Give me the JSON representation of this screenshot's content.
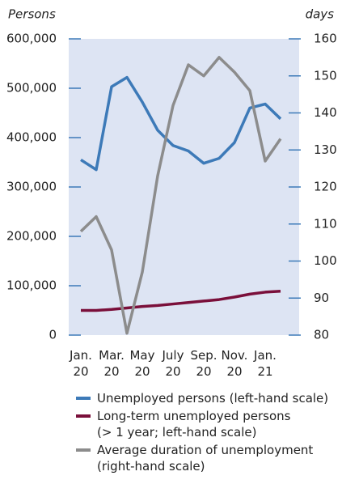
{
  "chart_data": {
    "type": "line",
    "ylabel": "Persons",
    "y2label": "days",
    "categories": [
      "Jan. 20",
      null,
      "Mar. 20",
      null,
      "May 20",
      null,
      "July 20",
      null,
      "Sep. 20",
      null,
      "Nov. 20",
      null,
      "Jan. 21",
      null
    ],
    "series": [
      {
        "name": "Unemployed persons (left-hand scale)",
        "color": "#3d7ab8",
        "values": [
          355000,
          335000,
          503000,
          522000,
          472000,
          415000,
          384000,
          373000,
          348000,
          358000,
          390000,
          460000,
          468000,
          438000
        ]
      },
      {
        "name": "Long-term unemployed persons\n(> 1 year; left-hand scale)",
        "color": "#7a0f3a",
        "values": [
          50000,
          50000,
          52000,
          55000,
          58000,
          60000,
          63000,
          66000,
          69000,
          72000,
          77000,
          83000,
          87000,
          89000
        ]
      },
      {
        "name": "Average duration of unemployment\n(right-hand scale)",
        "color": "#8c8c8c",
        "axis": "y2",
        "values": [
          108,
          112,
          103,
          80.5,
          97,
          123,
          142,
          153,
          150,
          155,
          151,
          146,
          127,
          133
        ]
      }
    ],
    "ylim": [
      0,
      600000
    ],
    "yticks": [
      0,
      {
        "value": 100000,
        "label": "100,000"
      },
      {
        "value": 200000,
        "label": "200,000"
      },
      {
        "value": 300000,
        "label": "300,000"
      },
      {
        "value": 400000,
        "label": "400,000"
      },
      {
        "value": 500000,
        "label": "500,000"
      },
      {
        "value": 600000,
        "label": "600,000"
      }
    ],
    "y2lim": [
      80,
      160
    ],
    "y2ticks": [
      80,
      90,
      100,
      110,
      120,
      130,
      140,
      150,
      160
    ],
    "axis_color": "#3d7ab8",
    "plot_background": "#dde4f3"
  }
}
